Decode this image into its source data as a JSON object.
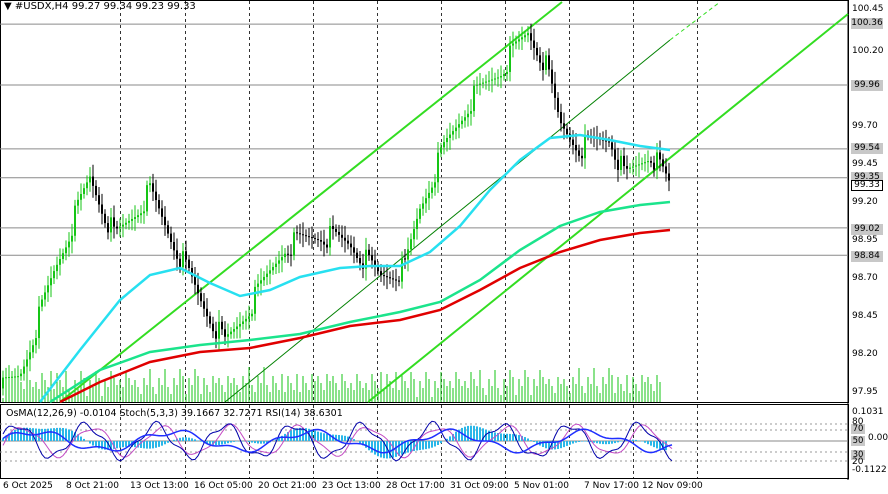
{
  "header": {
    "menu_icon": "triangle-down-icon",
    "symbol": "#USDX,H4",
    "ohlc": "99.27 99.34 99.23 99.33"
  },
  "indicator_header": "OsMA(12,26,9) -0.0104  Stoch(5,3,3) 39.1667 32.7271  RSI(14) 38.6301",
  "price_axis": {
    "labels": [
      "100.45",
      "100.20",
      "99.70",
      "99.45",
      "99.20",
      "98.95",
      "98.70",
      "98.45",
      "98.20",
      "97.95"
    ],
    "tagged": [
      "100.36",
      "99.96",
      "99.54",
      "99.35",
      "99.02",
      "98.84"
    ],
    "current": "99.33"
  },
  "osc_axis": {
    "labels": [
      "0.1031",
      "0.00",
      "-0.1122"
    ],
    "tagged": [
      "70",
      "50",
      "30"
    ],
    "levels_mid": [
      "80",
      "20"
    ]
  },
  "time_axis": [
    "6 Oct 2025",
    "8 Oct 21:00",
    "13 Oct 13:00",
    "16 Oct 05:00",
    "20 Oct 21:00",
    "23 Oct 13:00",
    "28 Oct 17:00",
    "31 Oct 09:00",
    "5 Nov 01:00",
    "7 Nov 17:00",
    "12 Nov 09:00"
  ],
  "colors": {
    "bull": "#15c515",
    "bear": "#000000",
    "ma_fast": "#27e0f0",
    "ma_mid": "#1be48c",
    "ma_slow": "#e00000",
    "channel": "#33dd22",
    "channel_mid": "#008000",
    "hist": "#2ab7e8",
    "stoch_main": "#0000aa",
    "stoch_sig": "#c44bc4",
    "rsi": "#1f2fff"
  }
}
